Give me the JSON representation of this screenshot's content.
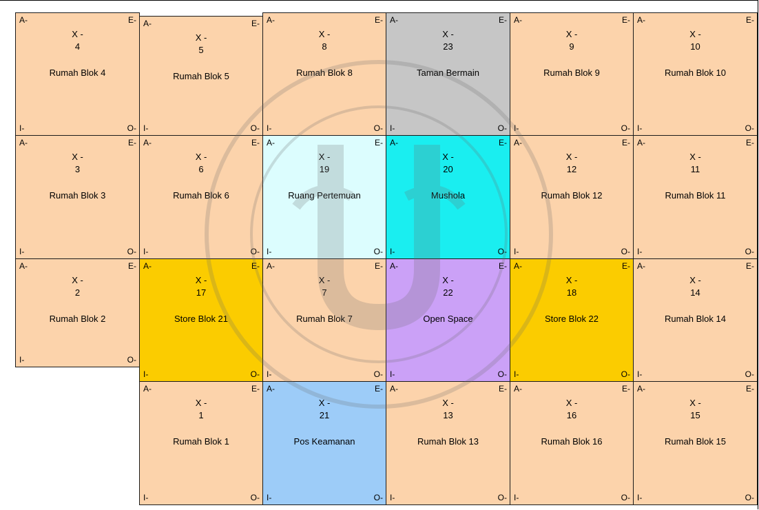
{
  "colors": {
    "house": "#fcd3ab",
    "park": "#c6c6c6",
    "meeting": "#dcfdfe",
    "mushola": "#1aeef0",
    "store": "#fbcc00",
    "open_space": "#cba1f7",
    "security": "#9dccf8"
  },
  "corner_labels": {
    "top_left": "A-",
    "top_right": "E-",
    "bottom_left": "I-",
    "bottom_right": "O-"
  },
  "x_prefix": "X -",
  "blocks": [
    {
      "row": 0,
      "col": 0,
      "number": "4",
      "name": "Rumah Blok 4",
      "color": "house"
    },
    {
      "row": 0,
      "col": 1,
      "number": "5",
      "name": "Rumah Blok 5",
      "color": "house"
    },
    {
      "row": 0,
      "col": 2,
      "number": "8",
      "name": "Rumah Blok 8",
      "color": "house"
    },
    {
      "row": 0,
      "col": 3,
      "number": "23",
      "name": "Taman Bermain",
      "color": "park"
    },
    {
      "row": 0,
      "col": 4,
      "number": "9",
      "name": "Rumah Blok 9",
      "color": "house"
    },
    {
      "row": 0,
      "col": 5,
      "number": "10",
      "name": "Rumah Blok 10",
      "color": "house"
    },
    {
      "row": 1,
      "col": 0,
      "number": "3",
      "name": "Rumah Blok 3",
      "color": "house"
    },
    {
      "row": 1,
      "col": 1,
      "number": "6",
      "name": "Rumah Blok 6",
      "color": "house"
    },
    {
      "row": 1,
      "col": 2,
      "number": "19",
      "name": "Ruang Pertemuan",
      "color": "meeting"
    },
    {
      "row": 1,
      "col": 3,
      "number": "20",
      "name": "Mushola",
      "color": "mushola"
    },
    {
      "row": 1,
      "col": 4,
      "number": "12",
      "name": "Rumah Blok 12",
      "color": "house"
    },
    {
      "row": 1,
      "col": 5,
      "number": "11",
      "name": "Rumah Blok 11",
      "color": "house"
    },
    {
      "row": 2,
      "col": 0,
      "number": "2",
      "name": "Rumah Blok 2",
      "color": "house"
    },
    {
      "row": 2,
      "col": 1,
      "number": "17",
      "name": "Store Blok 21",
      "color": "store"
    },
    {
      "row": 2,
      "col": 2,
      "number": "7",
      "name": "Rumah Blok 7",
      "color": "house"
    },
    {
      "row": 2,
      "col": 3,
      "number": "22",
      "name": "Open Space",
      "color": "open_space"
    },
    {
      "row": 2,
      "col": 4,
      "number": "18",
      "name": "Store Blok 22",
      "color": "store"
    },
    {
      "row": 2,
      "col": 5,
      "number": "14",
      "name": "Rumah Blok 14",
      "color": "house"
    },
    {
      "row": 3,
      "col": 1,
      "number": "1",
      "name": "Rumah Blok 1",
      "color": "house"
    },
    {
      "row": 3,
      "col": 2,
      "number": "21",
      "name": "Pos Keamanan",
      "color": "security"
    },
    {
      "row": 3,
      "col": 3,
      "number": "13",
      "name": "Rumah Blok  13",
      "color": "house"
    },
    {
      "row": 3,
      "col": 4,
      "number": "16",
      "name": "Rumah Blok 16",
      "color": "house"
    },
    {
      "row": 3,
      "col": 5,
      "number": "15",
      "name": "Rumah Blok 15",
      "color": "house"
    }
  ]
}
